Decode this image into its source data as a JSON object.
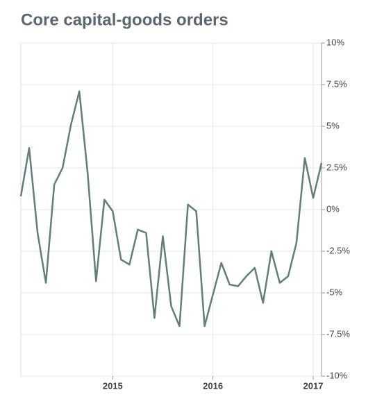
{
  "chart_data": {
    "type": "line",
    "title": "Core capital-goods orders",
    "categories": [
      null,
      null,
      null,
      null,
      null,
      null,
      null,
      null,
      null,
      null,
      null,
      "2015",
      null,
      null,
      null,
      null,
      null,
      null,
      null,
      null,
      null,
      null,
      null,
      "2016",
      null,
      null,
      null,
      null,
      null,
      null,
      null,
      null,
      null,
      null,
      null,
      "2017",
      null
    ],
    "series": [
      {
        "color": "#5f7f77",
        "values": [
          0.8,
          3.7,
          -1.4,
          -4.4,
          1.5,
          2.5,
          5.1,
          7.1,
          2.2,
          -4.3,
          0.6,
          -0.1,
          -3.0,
          -3.3,
          -1.2,
          -1.4,
          -6.5,
          -1.6,
          -5.8,
          -7.0,
          0.3,
          -0.1,
          -7.0,
          -5.1,
          -3.2,
          -4.5,
          -4.6,
          -4.0,
          -3.5,
          -5.6,
          -2.5,
          -4.4,
          -4.0,
          -2.0,
          3.1,
          0.7,
          2.8
        ]
      }
    ],
    "ylim": [
      -10,
      10
    ],
    "yticks": [
      {
        "value": 10,
        "label": "10%"
      },
      {
        "value": 7.5,
        "label": "7.5%"
      },
      {
        "value": 5,
        "label": "5%"
      },
      {
        "value": 2.5,
        "label": "2.5%"
      },
      {
        "value": 0,
        "label": "0%"
      },
      {
        "value": -2.5,
        "label": "-2.5%"
      },
      {
        "value": -5,
        "label": "-5%"
      },
      {
        "value": -7.5,
        "label": "-7.5%"
      },
      {
        "value": -10,
        "label": "-10%"
      }
    ],
    "grid": true
  }
}
